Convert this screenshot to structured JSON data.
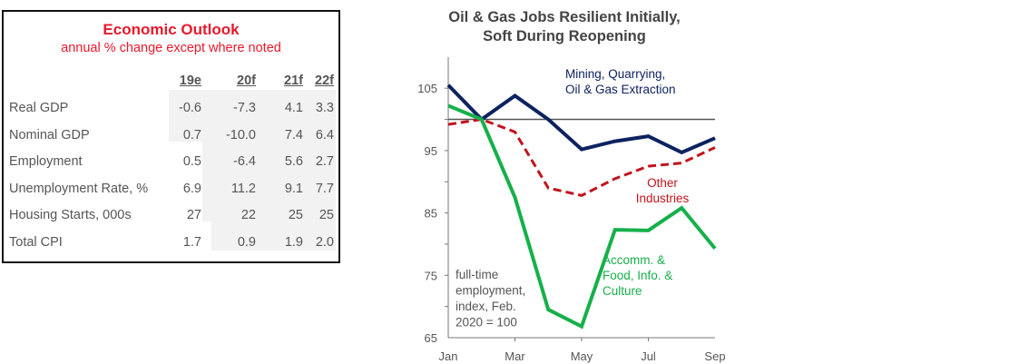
{
  "table": {
    "title": "Economic Outlook",
    "subtitle": "annual % change except where noted",
    "columns": [
      "19e",
      "20f",
      "21f",
      "22f"
    ],
    "rows": [
      {
        "label": "Real GDP",
        "values": [
          "-0.6",
          "-7.3",
          "4.1",
          "3.3"
        ]
      },
      {
        "label": "Nominal GDP",
        "values": [
          "0.7",
          "-10.0",
          "7.4",
          "6.4"
        ]
      },
      {
        "label": "Employment",
        "values": [
          "0.5",
          "-6.4",
          "5.6",
          "2.7"
        ]
      },
      {
        "label": "Unemployment Rate, %",
        "values": [
          "6.9",
          "11.2",
          "9.1",
          "7.7"
        ]
      },
      {
        "label": "Housing Starts, 000s",
        "values": [
          "27",
          "22",
          "25",
          "25"
        ]
      },
      {
        "label": "Total CPI",
        "values": [
          "1.7",
          "0.9",
          "1.9",
          "2.0"
        ]
      }
    ]
  },
  "chart_data": {
    "type": "line",
    "title": "Oil & Gas Jobs Resilient Initially,",
    "subtitle": "Soft During Reopening",
    "x": [
      "Jan",
      "Feb",
      "Mar",
      "Apr",
      "May",
      "Jun",
      "Jul",
      "Aug",
      "Sep"
    ],
    "xticklabels": [
      "Jan",
      "Mar",
      "May",
      "Jul",
      "Sep"
    ],
    "yticklabels": [
      "105",
      "95",
      "85",
      "75",
      "65"
    ],
    "ylim": [
      65,
      110
    ],
    "reference_line": 100,
    "annotation": [
      "full-time",
      "employment,",
      "index, Feb.",
      "2020 = 100"
    ],
    "series": [
      {
        "name": "Mining, Quarrying, Oil & Gas Extraction",
        "label_lines": [
          "Mining, Quarrying,",
          "Oil & Gas Extraction"
        ],
        "color": "#0d2260",
        "dashed": false,
        "values": [
          105.5,
          100,
          103.8,
          100,
          95.2,
          96.5,
          97.3,
          94.7,
          97
        ]
      },
      {
        "name": "Other Industries",
        "label_lines": [
          "Other",
          "Industries"
        ],
        "color": "#c0141c",
        "dashed": true,
        "values": [
          99.2,
          100,
          98,
          89,
          87.8,
          90.5,
          92.5,
          93,
          95.5
        ]
      },
      {
        "name": "Accomm. & Food, Info. & Culture",
        "label_lines": [
          "Accomm. &",
          "Food, Info. &",
          "Culture"
        ],
        "color": "#16b04a",
        "dashed": false,
        "values": [
          102.2,
          100,
          87.5,
          69.5,
          66.8,
          82.3,
          82.2,
          85.8,
          79.3
        ]
      }
    ]
  }
}
